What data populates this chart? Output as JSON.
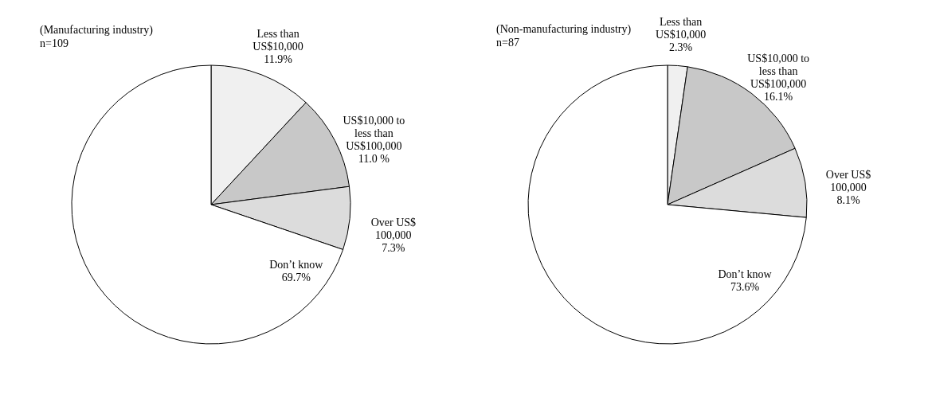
{
  "chart_data": [
    {
      "type": "pie",
      "title": "(Manufacturing industry)",
      "subtitle": "n=109",
      "categories": [
        "Less than US$10,000",
        "US$10,000 to less than US$100,000",
        "Over US$ 100,000",
        "Don’t know"
      ],
      "values": [
        11.9,
        11.0,
        7.3,
        69.7
      ],
      "colors": [
        "#f0f0f0",
        "#c8c8c8",
        "#dcdcdc",
        "#ffffff"
      ],
      "value_labels": [
        "11.9%",
        "11.0 %",
        "7.3%",
        "69.7%"
      ]
    },
    {
      "type": "pie",
      "title": "(Non-manufacturing industry)",
      "subtitle": "n=87",
      "categories": [
        "Less than US$10,000",
        "US$10,000 to less than US$100,000",
        "Over US$ 100,000",
        "Don’t know"
      ],
      "values": [
        2.3,
        16.1,
        8.1,
        73.6
      ],
      "colors": [
        "#f0f0f0",
        "#c8c8c8",
        "#dcdcdc",
        "#ffffff"
      ],
      "value_labels": [
        "2.3%",
        "16.1%",
        "8.1%",
        "73.6%"
      ]
    }
  ]
}
